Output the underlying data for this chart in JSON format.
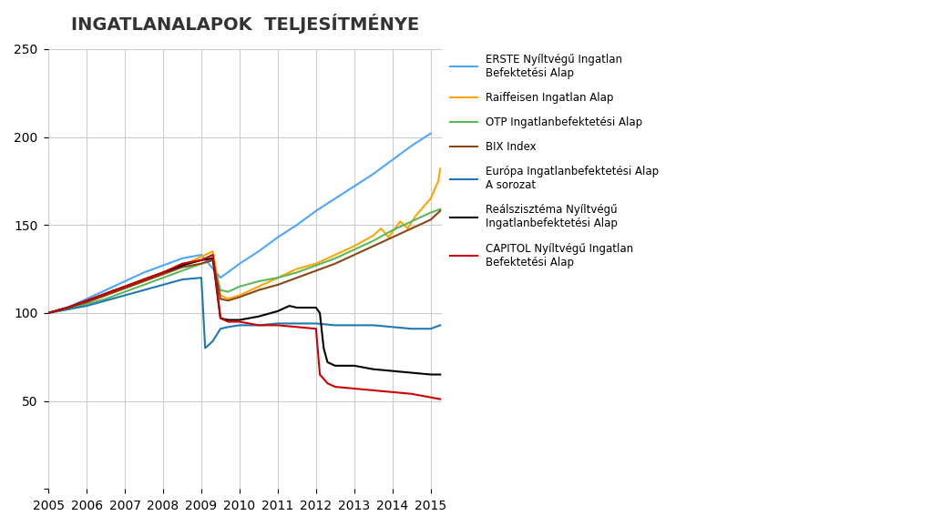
{
  "title": "INGATLANALAPOK  TELJESÍTMÉNYE",
  "xlim": [
    2005.0,
    2015.3
  ],
  "ylim": [
    0,
    250
  ],
  "yticks": [
    0,
    50,
    100,
    150,
    200,
    250
  ],
  "xticks": [
    2005,
    2006,
    2007,
    2008,
    2009,
    2010,
    2011,
    2012,
    2013,
    2014,
    2015
  ],
  "background_color": "#ffffff",
  "grid_color": "#cccccc",
  "series": [
    {
      "name": "ERSTE Nyíltvégű Ingatlan\nBefektetési Alap",
      "color": "#4da6ff",
      "linewidth": 1.5,
      "points": [
        [
          2005.0,
          100
        ],
        [
          2005.5,
          103
        ],
        [
          2006.0,
          108
        ],
        [
          2006.5,
          113
        ],
        [
          2007.0,
          118
        ],
        [
          2007.5,
          123
        ],
        [
          2008.0,
          127
        ],
        [
          2008.5,
          131
        ],
        [
          2009.0,
          133
        ],
        [
          2009.5,
          120
        ],
        [
          2010.0,
          128
        ],
        [
          2010.5,
          135
        ],
        [
          2011.0,
          143
        ],
        [
          2011.5,
          150
        ],
        [
          2012.0,
          158
        ],
        [
          2012.5,
          165
        ],
        [
          2013.0,
          172
        ],
        [
          2013.5,
          179
        ],
        [
          2014.0,
          187
        ],
        [
          2014.5,
          195
        ],
        [
          2015.0,
          202
        ]
      ]
    },
    {
      "name": "Raiffeisen Ingatlan Alap",
      "color": "#ffa500",
      "linewidth": 1.5,
      "points": [
        [
          2005.0,
          100
        ],
        [
          2005.5,
          103
        ],
        [
          2006.0,
          107
        ],
        [
          2006.5,
          111
        ],
        [
          2007.0,
          115
        ],
        [
          2007.5,
          119
        ],
        [
          2008.0,
          123
        ],
        [
          2008.5,
          127
        ],
        [
          2009.0,
          132
        ],
        [
          2009.3,
          135
        ],
        [
          2009.5,
          110
        ],
        [
          2009.7,
          108
        ],
        [
          2010.0,
          110
        ],
        [
          2010.5,
          115
        ],
        [
          2011.0,
          120
        ],
        [
          2011.5,
          125
        ],
        [
          2012.0,
          128
        ],
        [
          2012.5,
          133
        ],
        [
          2013.0,
          138
        ],
        [
          2013.5,
          144
        ],
        [
          2013.7,
          148
        ],
        [
          2013.9,
          143
        ],
        [
          2014.0,
          146
        ],
        [
          2014.2,
          152
        ],
        [
          2014.4,
          148
        ],
        [
          2014.6,
          155
        ],
        [
          2014.8,
          160
        ],
        [
          2015.0,
          165
        ],
        [
          2015.1,
          170
        ],
        [
          2015.2,
          175
        ],
        [
          2015.25,
          182
        ]
      ]
    },
    {
      "name": "OTP Ingatlanbefektetési Alap",
      "color": "#5cb85c",
      "linewidth": 1.5,
      "points": [
        [
          2005.0,
          100
        ],
        [
          2005.5,
          102
        ],
        [
          2006.0,
          105
        ],
        [
          2006.5,
          108
        ],
        [
          2007.0,
          112
        ],
        [
          2007.5,
          116
        ],
        [
          2008.0,
          120
        ],
        [
          2008.5,
          124
        ],
        [
          2009.0,
          128
        ],
        [
          2009.3,
          130
        ],
        [
          2009.5,
          113
        ],
        [
          2009.7,
          112
        ],
        [
          2010.0,
          115
        ],
        [
          2010.5,
          118
        ],
        [
          2011.0,
          120
        ],
        [
          2011.5,
          123
        ],
        [
          2012.0,
          127
        ],
        [
          2012.5,
          131
        ],
        [
          2013.0,
          136
        ],
        [
          2013.5,
          141
        ],
        [
          2014.0,
          147
        ],
        [
          2014.5,
          152
        ],
        [
          2015.0,
          157
        ],
        [
          2015.25,
          159
        ]
      ]
    },
    {
      "name": "BIX Index",
      "color": "#8B4513",
      "linewidth": 1.5,
      "points": [
        [
          2005.0,
          100
        ],
        [
          2005.5,
          103
        ],
        [
          2006.0,
          106
        ],
        [
          2006.5,
          110
        ],
        [
          2007.0,
          114
        ],
        [
          2007.5,
          118
        ],
        [
          2008.0,
          122
        ],
        [
          2008.5,
          126
        ],
        [
          2009.0,
          128
        ],
        [
          2009.3,
          130
        ],
        [
          2009.5,
          108
        ],
        [
          2009.7,
          107
        ],
        [
          2010.0,
          109
        ],
        [
          2010.5,
          113
        ],
        [
          2011.0,
          116
        ],
        [
          2011.5,
          120
        ],
        [
          2012.0,
          124
        ],
        [
          2012.5,
          128
        ],
        [
          2013.0,
          133
        ],
        [
          2013.5,
          138
        ],
        [
          2014.0,
          143
        ],
        [
          2014.5,
          148
        ],
        [
          2015.0,
          153
        ],
        [
          2015.25,
          158
        ]
      ]
    },
    {
      "name": "Európa Ingatlanbefektetési Alap\nA sorozat",
      "color": "#1f78b4",
      "linewidth": 1.5,
      "points": [
        [
          2005.0,
          100
        ],
        [
          2005.5,
          102
        ],
        [
          2006.0,
          104
        ],
        [
          2006.5,
          107
        ],
        [
          2007.0,
          110
        ],
        [
          2007.5,
          113
        ],
        [
          2008.0,
          116
        ],
        [
          2008.5,
          119
        ],
        [
          2009.0,
          120
        ],
        [
          2009.1,
          80
        ],
        [
          2009.3,
          84
        ],
        [
          2009.5,
          91
        ],
        [
          2009.7,
          92
        ],
        [
          2010.0,
          93
        ],
        [
          2010.5,
          93
        ],
        [
          2011.0,
          94
        ],
        [
          2011.5,
          94
        ],
        [
          2012.0,
          94
        ],
        [
          2012.5,
          93
        ],
        [
          2013.0,
          93
        ],
        [
          2013.5,
          93
        ],
        [
          2014.0,
          92
        ],
        [
          2014.5,
          91
        ],
        [
          2015.0,
          91
        ],
        [
          2015.25,
          93
        ]
      ]
    },
    {
      "name": "Reálszisztéma Nyíltvégű\nIngatlanbefektetési Alap",
      "color": "#000000",
      "linewidth": 1.5,
      "points": [
        [
          2005.0,
          100
        ],
        [
          2005.5,
          103
        ],
        [
          2006.0,
          107
        ],
        [
          2006.5,
          111
        ],
        [
          2007.0,
          115
        ],
        [
          2007.5,
          119
        ],
        [
          2008.0,
          123
        ],
        [
          2008.5,
          127
        ],
        [
          2009.0,
          130
        ],
        [
          2009.3,
          131
        ],
        [
          2009.5,
          97
        ],
        [
          2009.7,
          96
        ],
        [
          2010.0,
          96
        ],
        [
          2010.5,
          98
        ],
        [
          2011.0,
          101
        ],
        [
          2011.3,
          104
        ],
        [
          2011.5,
          103
        ],
        [
          2011.7,
          103
        ],
        [
          2012.0,
          103
        ],
        [
          2012.1,
          100
        ],
        [
          2012.2,
          80
        ],
        [
          2012.3,
          72
        ],
        [
          2012.5,
          70
        ],
        [
          2013.0,
          70
        ],
        [
          2013.5,
          68
        ],
        [
          2014.0,
          67
        ],
        [
          2014.5,
          66
        ],
        [
          2015.0,
          65
        ],
        [
          2015.25,
          65
        ]
      ]
    },
    {
      "name": "CAPITOL Nyíltvégű Ingatlan\nBefektetési Alap",
      "color": "#cc0000",
      "linewidth": 1.5,
      "points": [
        [
          2005.0,
          100
        ],
        [
          2005.5,
          103
        ],
        [
          2006.0,
          107
        ],
        [
          2006.5,
          111
        ],
        [
          2007.0,
          115
        ],
        [
          2007.5,
          119
        ],
        [
          2008.0,
          123
        ],
        [
          2008.5,
          128
        ],
        [
          2009.0,
          130
        ],
        [
          2009.3,
          133
        ],
        [
          2009.5,
          97
        ],
        [
          2009.7,
          95
        ],
        [
          2010.0,
          95
        ],
        [
          2010.5,
          93
        ],
        [
          2011.0,
          93
        ],
        [
          2011.5,
          92
        ],
        [
          2012.0,
          91
        ],
        [
          2012.1,
          65
        ],
        [
          2012.3,
          60
        ],
        [
          2012.5,
          58
        ],
        [
          2013.0,
          57
        ],
        [
          2013.5,
          56
        ],
        [
          2014.0,
          55
        ],
        [
          2014.5,
          54
        ],
        [
          2015.0,
          52
        ],
        [
          2015.25,
          51
        ]
      ]
    }
  ]
}
